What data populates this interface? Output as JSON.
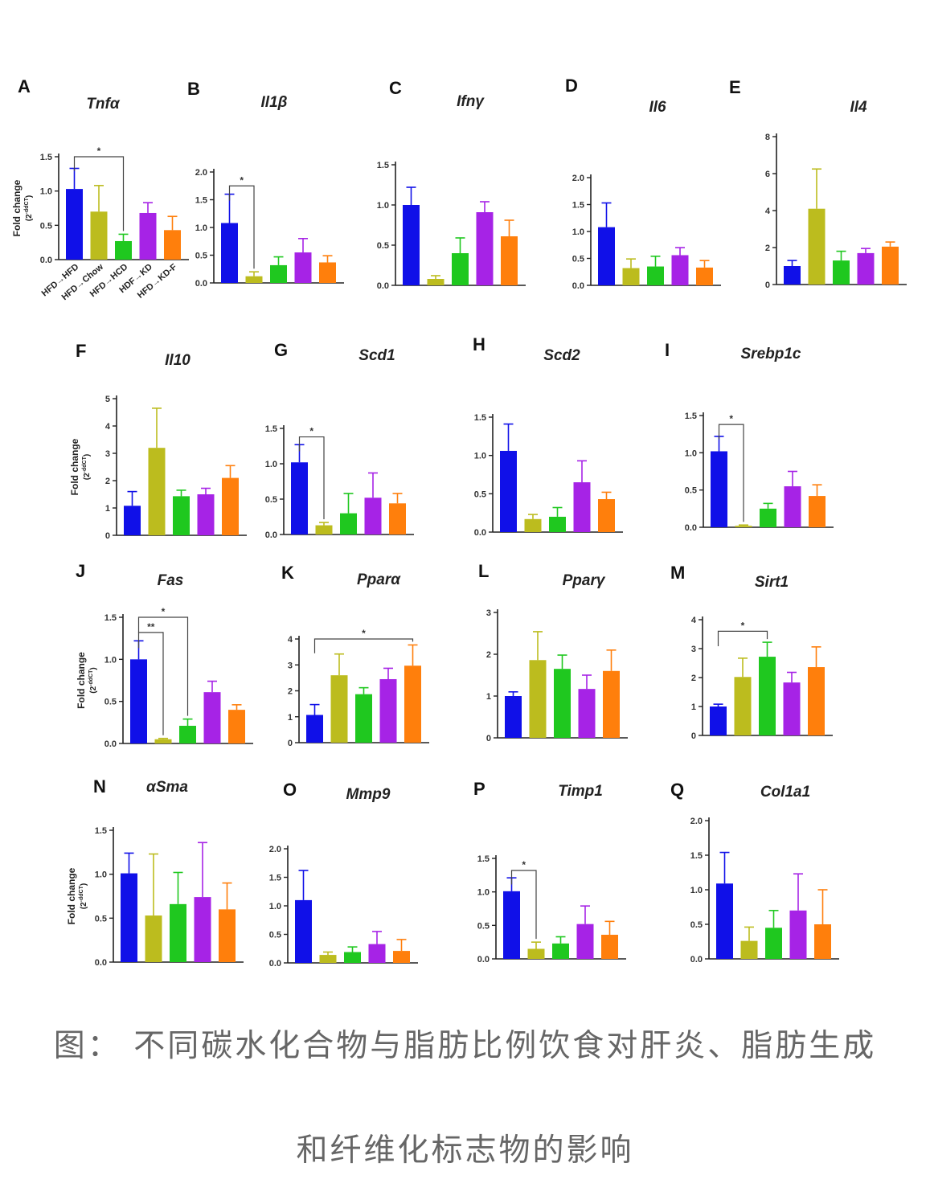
{
  "figure": {
    "colors": [
      "#1010e8",
      "#bcbc1e",
      "#1fc81f",
      "#a623e6",
      "#ff7f0c"
    ],
    "group_labels": [
      "HFD→HFD",
      "HFD→Chow",
      "HFD→HCD",
      "HDF→KD",
      "HFD→KD-F"
    ],
    "fold_change_label": "Fold change",
    "fold_change_sub": "(2",
    "fold_change_sup": "-ddCT",
    "fold_change_end": ")"
  },
  "chart_data": [
    {
      "letter": "A",
      "title": "Tnfα",
      "type": "bar",
      "yticks": [
        "0.0",
        "0.5",
        "1.0",
        "1.5"
      ],
      "ylim": [
        0,
        1.5
      ],
      "values": [
        1.03,
        0.7,
        0.27,
        0.68,
        0.43
      ],
      "errors": [
        0.3,
        0.38,
        0.1,
        0.15,
        0.2
      ],
      "sig": [
        {
          "from": 0,
          "to": 2,
          "label": "*",
          "y": 1.5
        }
      ]
    },
    {
      "letter": "B",
      "title": "Il1β",
      "type": "bar",
      "yticks": [
        "0.0",
        "0.5",
        "1.0",
        "1.5",
        "2.0"
      ],
      "ylim": [
        0,
        2.0
      ],
      "values": [
        1.08,
        0.12,
        0.32,
        0.55,
        0.37
      ],
      "errors": [
        0.52,
        0.08,
        0.15,
        0.25,
        0.12
      ],
      "sig": [
        {
          "from": 0,
          "to": 1,
          "label": "*",
          "y": 1.75
        }
      ]
    },
    {
      "letter": "C",
      "title": "Ifnγ",
      "type": "bar",
      "yticks": [
        "0.0",
        "0.5",
        "1.0",
        "1.5"
      ],
      "ylim": [
        0,
        1.5
      ],
      "values": [
        1.0,
        0.08,
        0.4,
        0.91,
        0.61
      ],
      "errors": [
        0.22,
        0.04,
        0.19,
        0.13,
        0.2
      ],
      "sig": []
    },
    {
      "letter": "D",
      "title": "Il6",
      "type": "bar",
      "yticks": [
        "0.0",
        "0.5",
        "1.0",
        "1.5",
        "2.0"
      ],
      "ylim": [
        0,
        2.0
      ],
      "values": [
        1.08,
        0.32,
        0.35,
        0.56,
        0.33
      ],
      "errors": [
        0.45,
        0.17,
        0.19,
        0.14,
        0.13
      ],
      "sig": []
    },
    {
      "letter": "E",
      "title": "Il4",
      "type": "bar",
      "yticks": [
        "0",
        "2",
        "4",
        "6",
        "8"
      ],
      "ylim": [
        0,
        8
      ],
      "values": [
        1.0,
        4.1,
        1.3,
        1.7,
        2.05
      ],
      "errors": [
        0.3,
        2.15,
        0.5,
        0.25,
        0.25
      ],
      "sig": []
    },
    {
      "letter": "F",
      "title": "Il10",
      "type": "bar",
      "yticks": [
        "0",
        "1",
        "2",
        "3",
        "4",
        "5"
      ],
      "ylim": [
        0,
        5
      ],
      "values": [
        1.08,
        3.2,
        1.43,
        1.5,
        2.1
      ],
      "errors": [
        0.52,
        1.45,
        0.22,
        0.22,
        0.45
      ],
      "sig": []
    },
    {
      "letter": "G",
      "title": "Scd1",
      "type": "bar",
      "yticks": [
        "0.0",
        "0.5",
        "1.0",
        "1.5"
      ],
      "ylim": [
        0,
        1.5
      ],
      "values": [
        1.02,
        0.13,
        0.3,
        0.52,
        0.44
      ],
      "errors": [
        0.25,
        0.04,
        0.28,
        0.35,
        0.14
      ],
      "sig": [
        {
          "from": 0,
          "to": 1,
          "label": "*",
          "y": 1.38
        }
      ]
    },
    {
      "letter": "H",
      "title": "Scd2",
      "type": "bar",
      "yticks": [
        "0.0",
        "0.5",
        "1.0",
        "1.5"
      ],
      "ylim": [
        0,
        1.5
      ],
      "values": [
        1.06,
        0.17,
        0.2,
        0.65,
        0.43
      ],
      "errors": [
        0.35,
        0.06,
        0.12,
        0.28,
        0.09
      ],
      "sig": []
    },
    {
      "letter": "I",
      "title": "Srebp1c",
      "type": "bar",
      "yticks": [
        "0.0",
        "0.5",
        "1.0",
        "1.5"
      ],
      "ylim": [
        0,
        1.5
      ],
      "values": [
        1.02,
        0.02,
        0.25,
        0.55,
        0.42
      ],
      "errors": [
        0.2,
        0.01,
        0.07,
        0.2,
        0.15
      ],
      "sig": [
        {
          "from": 0,
          "to": 1,
          "label": "*",
          "y": 1.38
        }
      ]
    },
    {
      "letter": "J",
      "title": "Fas",
      "type": "bar",
      "yticks": [
        "0.0",
        "0.5",
        "1.0",
        "1.5"
      ],
      "ylim": [
        0,
        1.5
      ],
      "values": [
        1.0,
        0.05,
        0.21,
        0.61,
        0.4
      ],
      "errors": [
        0.22,
        0.01,
        0.08,
        0.13,
        0.06
      ],
      "sig": [
        {
          "from": 0,
          "to": 2,
          "label": "*",
          "y": 1.5
        },
        {
          "from": 0,
          "to": 1,
          "label": "**",
          "y": 1.32
        }
      ]
    },
    {
      "letter": "K",
      "title": "Pparα",
      "type": "bar",
      "yticks": [
        "0",
        "1",
        "2",
        "3",
        "4"
      ],
      "ylim": [
        0,
        4
      ],
      "values": [
        1.07,
        2.6,
        1.87,
        2.45,
        2.97
      ],
      "errors": [
        0.4,
        0.82,
        0.25,
        0.42,
        0.8
      ],
      "sig": [
        {
          "from": 0,
          "to": 4,
          "label": "*",
          "y": 4.0
        }
      ]
    },
    {
      "letter": "L",
      "title": "Pparγ",
      "type": "bar",
      "yticks": [
        "0",
        "1",
        "2",
        "3"
      ],
      "ylim": [
        0,
        3
      ],
      "values": [
        1.0,
        1.86,
        1.65,
        1.17,
        1.6
      ],
      "errors": [
        0.1,
        0.68,
        0.33,
        0.33,
        0.5
      ],
      "sig": []
    },
    {
      "letter": "M",
      "title": "Sirt1",
      "type": "bar",
      "yticks": [
        "0",
        "1",
        "2",
        "3",
        "4"
      ],
      "ylim": [
        0,
        4
      ],
      "values": [
        1.0,
        2.02,
        2.72,
        1.83,
        2.36
      ],
      "errors": [
        0.08,
        0.65,
        0.5,
        0.35,
        0.7
      ],
      "sig": [
        {
          "from": 0,
          "to": 2,
          "label": "*",
          "y": 3.6
        }
      ]
    },
    {
      "letter": "N",
      "title": "αSma",
      "type": "bar",
      "yticks": [
        "0.0",
        "0.5",
        "1.0",
        "1.5"
      ],
      "ylim": [
        0,
        1.5
      ],
      "values": [
        1.01,
        0.53,
        0.66,
        0.74,
        0.6
      ],
      "errors": [
        0.23,
        0.7,
        0.36,
        0.62,
        0.3
      ],
      "sig": []
    },
    {
      "letter": "O",
      "title": "Mmp9",
      "type": "bar",
      "yticks": [
        "0.0",
        "0.5",
        "1.0",
        "1.5",
        "2.0"
      ],
      "ylim": [
        0,
        2.0
      ],
      "values": [
        1.1,
        0.14,
        0.19,
        0.33,
        0.21
      ],
      "errors": [
        0.52,
        0.05,
        0.09,
        0.22,
        0.2
      ],
      "sig": []
    },
    {
      "letter": "P",
      "title": "Timp1",
      "type": "bar",
      "yticks": [
        "0.0",
        "0.5",
        "1.0",
        "1.5"
      ],
      "ylim": [
        0,
        1.5
      ],
      "values": [
        1.01,
        0.15,
        0.23,
        0.52,
        0.36
      ],
      "errors": [
        0.2,
        0.1,
        0.1,
        0.27,
        0.2
      ],
      "sig": [
        {
          "from": 0,
          "to": 1,
          "label": "*",
          "y": 1.32
        }
      ]
    },
    {
      "letter": "Q",
      "title": "Col1a1",
      "type": "bar",
      "yticks": [
        "0.0",
        "0.5",
        "1.0",
        "1.5",
        "2.0"
      ],
      "ylim": [
        0,
        2.0
      ],
      "values": [
        1.09,
        0.26,
        0.45,
        0.7,
        0.5
      ],
      "errors": [
        0.45,
        0.2,
        0.25,
        0.53,
        0.5
      ],
      "sig": []
    }
  ],
  "caption": {
    "line1": "图：  不同碳水化合物与脂肪比例饮食对肝炎、脂肪生成",
    "line2": "和纤维化标志物的影响"
  }
}
